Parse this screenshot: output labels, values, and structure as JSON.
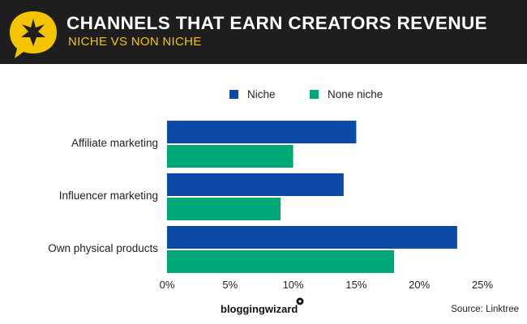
{
  "header": {
    "title": "CHANNELS THAT EARN CREATORS REVENUE",
    "subtitle": "NICHE VS NON NICHE"
  },
  "footer": {
    "brand": "bloggingwizard",
    "source": "Source: Linktree"
  },
  "colors": {
    "header_bg": "#1e1e1e",
    "accent_yellow": "#f5c400",
    "niche": "#0b4aa6",
    "none_niche": "#00a878"
  },
  "chart_data": {
    "type": "bar",
    "orientation": "horizontal",
    "categories": [
      "Affiliate marketing",
      "Influencer marketing",
      "Own physical products"
    ],
    "series": [
      {
        "name": "Niche",
        "values": [
          15,
          14,
          23
        ]
      },
      {
        "name": "None niche",
        "values": [
          10,
          9,
          18
        ]
      }
    ],
    "xlim": [
      0,
      25
    ],
    "xticks": [
      "0%",
      "5%",
      "10%",
      "15%",
      "20%",
      "25%"
    ],
    "legend": "top",
    "grid": false
  }
}
